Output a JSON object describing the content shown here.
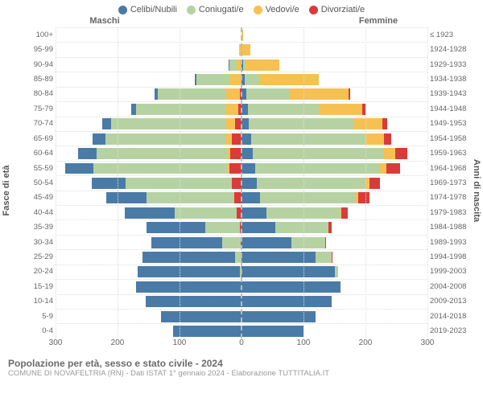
{
  "legend": [
    {
      "label": "Celibi/Nubili",
      "color": "#4a7ba6"
    },
    {
      "label": "Coniugati/e",
      "color": "#b7d2a2"
    },
    {
      "label": "Vedovi/e",
      "color": "#f6c152"
    },
    {
      "label": "Divorziati/e",
      "color": "#d93b3b"
    }
  ],
  "header_left": "Maschi",
  "header_right": "Femmine",
  "ylabel_left": "Fasce di età",
  "ylabel_right": "Anni di nascita",
  "title": "Popolazione per età, sesso e stato civile - 2024",
  "subtitle": "COMUNE DI NOVAFELTRIA (RN) - Dati ISTAT 1° gennaio 2024 - Elaborazione TUTTITALIA.IT",
  "xmax": 300,
  "xticks": [
    0,
    100,
    200,
    300
  ],
  "background_color": "#ffffff",
  "grid_color": "#dddddd",
  "bar_fill_ratio": 0.8,
  "axis_font_size": 10,
  "label_font_size": 11,
  "colors": {
    "single": "#4a7ba6",
    "married": "#b7d2a2",
    "widowed": "#f6c152",
    "divorced": "#d93b3b"
  },
  "rows": [
    {
      "age": "100+",
      "birth": "≤ 1923",
      "m": {
        "s": 0,
        "c": 0,
        "w": 0,
        "d": 0
      },
      "f": {
        "s": 0,
        "c": 0,
        "w": 3,
        "d": 0
      }
    },
    {
      "age": "95-99",
      "birth": "1924-1928",
      "m": {
        "s": 0,
        "c": 2,
        "w": 2,
        "d": 0
      },
      "f": {
        "s": 0,
        "c": 0,
        "w": 14,
        "d": 0
      }
    },
    {
      "age": "90-94",
      "birth": "1929-1933",
      "m": {
        "s": 1,
        "c": 12,
        "w": 8,
        "d": 0
      },
      "f": {
        "s": 2,
        "c": 4,
        "w": 55,
        "d": 0
      }
    },
    {
      "age": "85-89",
      "birth": "1934-1938",
      "m": {
        "s": 3,
        "c": 55,
        "w": 18,
        "d": 0
      },
      "f": {
        "s": 5,
        "c": 25,
        "w": 95,
        "d": 0
      }
    },
    {
      "age": "80-84",
      "birth": "1939-1943",
      "m": {
        "s": 5,
        "c": 110,
        "w": 22,
        "d": 3
      },
      "f": {
        "s": 8,
        "c": 70,
        "w": 95,
        "d": 3
      }
    },
    {
      "age": "75-79",
      "birth": "1944-1948",
      "m": {
        "s": 8,
        "c": 145,
        "w": 20,
        "d": 5
      },
      "f": {
        "s": 10,
        "c": 115,
        "w": 70,
        "d": 5
      }
    },
    {
      "age": "70-74",
      "birth": "1949-1953",
      "m": {
        "s": 15,
        "c": 185,
        "w": 15,
        "d": 10
      },
      "f": {
        "s": 12,
        "c": 170,
        "w": 45,
        "d": 8
      }
    },
    {
      "age": "65-69",
      "birth": "1954-1958",
      "m": {
        "s": 20,
        "c": 195,
        "w": 10,
        "d": 15
      },
      "f": {
        "s": 15,
        "c": 185,
        "w": 30,
        "d": 12
      }
    },
    {
      "age": "60-64",
      "birth": "1959-1963",
      "m": {
        "s": 30,
        "c": 210,
        "w": 6,
        "d": 18
      },
      "f": {
        "s": 18,
        "c": 210,
        "w": 20,
        "d": 20
      }
    },
    {
      "age": "55-59",
      "birth": "1964-1968",
      "m": {
        "s": 45,
        "c": 215,
        "w": 4,
        "d": 20
      },
      "f": {
        "s": 22,
        "c": 200,
        "w": 12,
        "d": 22
      }
    },
    {
      "age": "50-54",
      "birth": "1969-1973",
      "m": {
        "s": 55,
        "c": 170,
        "w": 2,
        "d": 15
      },
      "f": {
        "s": 25,
        "c": 175,
        "w": 6,
        "d": 18
      }
    },
    {
      "age": "45-49",
      "birth": "1974-1978",
      "m": {
        "s": 65,
        "c": 140,
        "w": 1,
        "d": 12
      },
      "f": {
        "s": 30,
        "c": 155,
        "w": 3,
        "d": 18
      }
    },
    {
      "age": "40-44",
      "birth": "1979-1983",
      "m": {
        "s": 80,
        "c": 100,
        "w": 0,
        "d": 8
      },
      "f": {
        "s": 40,
        "c": 120,
        "w": 1,
        "d": 10
      }
    },
    {
      "age": "35-39",
      "birth": "1984-1988",
      "m": {
        "s": 95,
        "c": 55,
        "w": 0,
        "d": 3
      },
      "f": {
        "s": 55,
        "c": 85,
        "w": 0,
        "d": 5
      }
    },
    {
      "age": "30-34",
      "birth": "1989-1993",
      "m": {
        "s": 115,
        "c": 30,
        "w": 0,
        "d": 1
      },
      "f": {
        "s": 80,
        "c": 55,
        "w": 0,
        "d": 2
      }
    },
    {
      "age": "25-29",
      "birth": "1994-1998",
      "m": {
        "s": 150,
        "c": 10,
        "w": 0,
        "d": 0
      },
      "f": {
        "s": 120,
        "c": 25,
        "w": 0,
        "d": 1
      }
    },
    {
      "age": "20-24",
      "birth": "1999-2003",
      "m": {
        "s": 165,
        "c": 2,
        "w": 0,
        "d": 0
      },
      "f": {
        "s": 150,
        "c": 6,
        "w": 0,
        "d": 0
      }
    },
    {
      "age": "15-19",
      "birth": "2004-2008",
      "m": {
        "s": 170,
        "c": 0,
        "w": 0,
        "d": 0
      },
      "f": {
        "s": 160,
        "c": 0,
        "w": 0,
        "d": 0
      }
    },
    {
      "age": "10-14",
      "birth": "2009-2013",
      "m": {
        "s": 155,
        "c": 0,
        "w": 0,
        "d": 0
      },
      "f": {
        "s": 145,
        "c": 0,
        "w": 0,
        "d": 0
      }
    },
    {
      "age": "5-9",
      "birth": "2014-2018",
      "m": {
        "s": 130,
        "c": 0,
        "w": 0,
        "d": 0
      },
      "f": {
        "s": 120,
        "c": 0,
        "w": 0,
        "d": 0
      }
    },
    {
      "age": "0-4",
      "birth": "2019-2023",
      "m": {
        "s": 110,
        "c": 0,
        "w": 0,
        "d": 0
      },
      "f": {
        "s": 100,
        "c": 0,
        "w": 0,
        "d": 0
      }
    }
  ]
}
